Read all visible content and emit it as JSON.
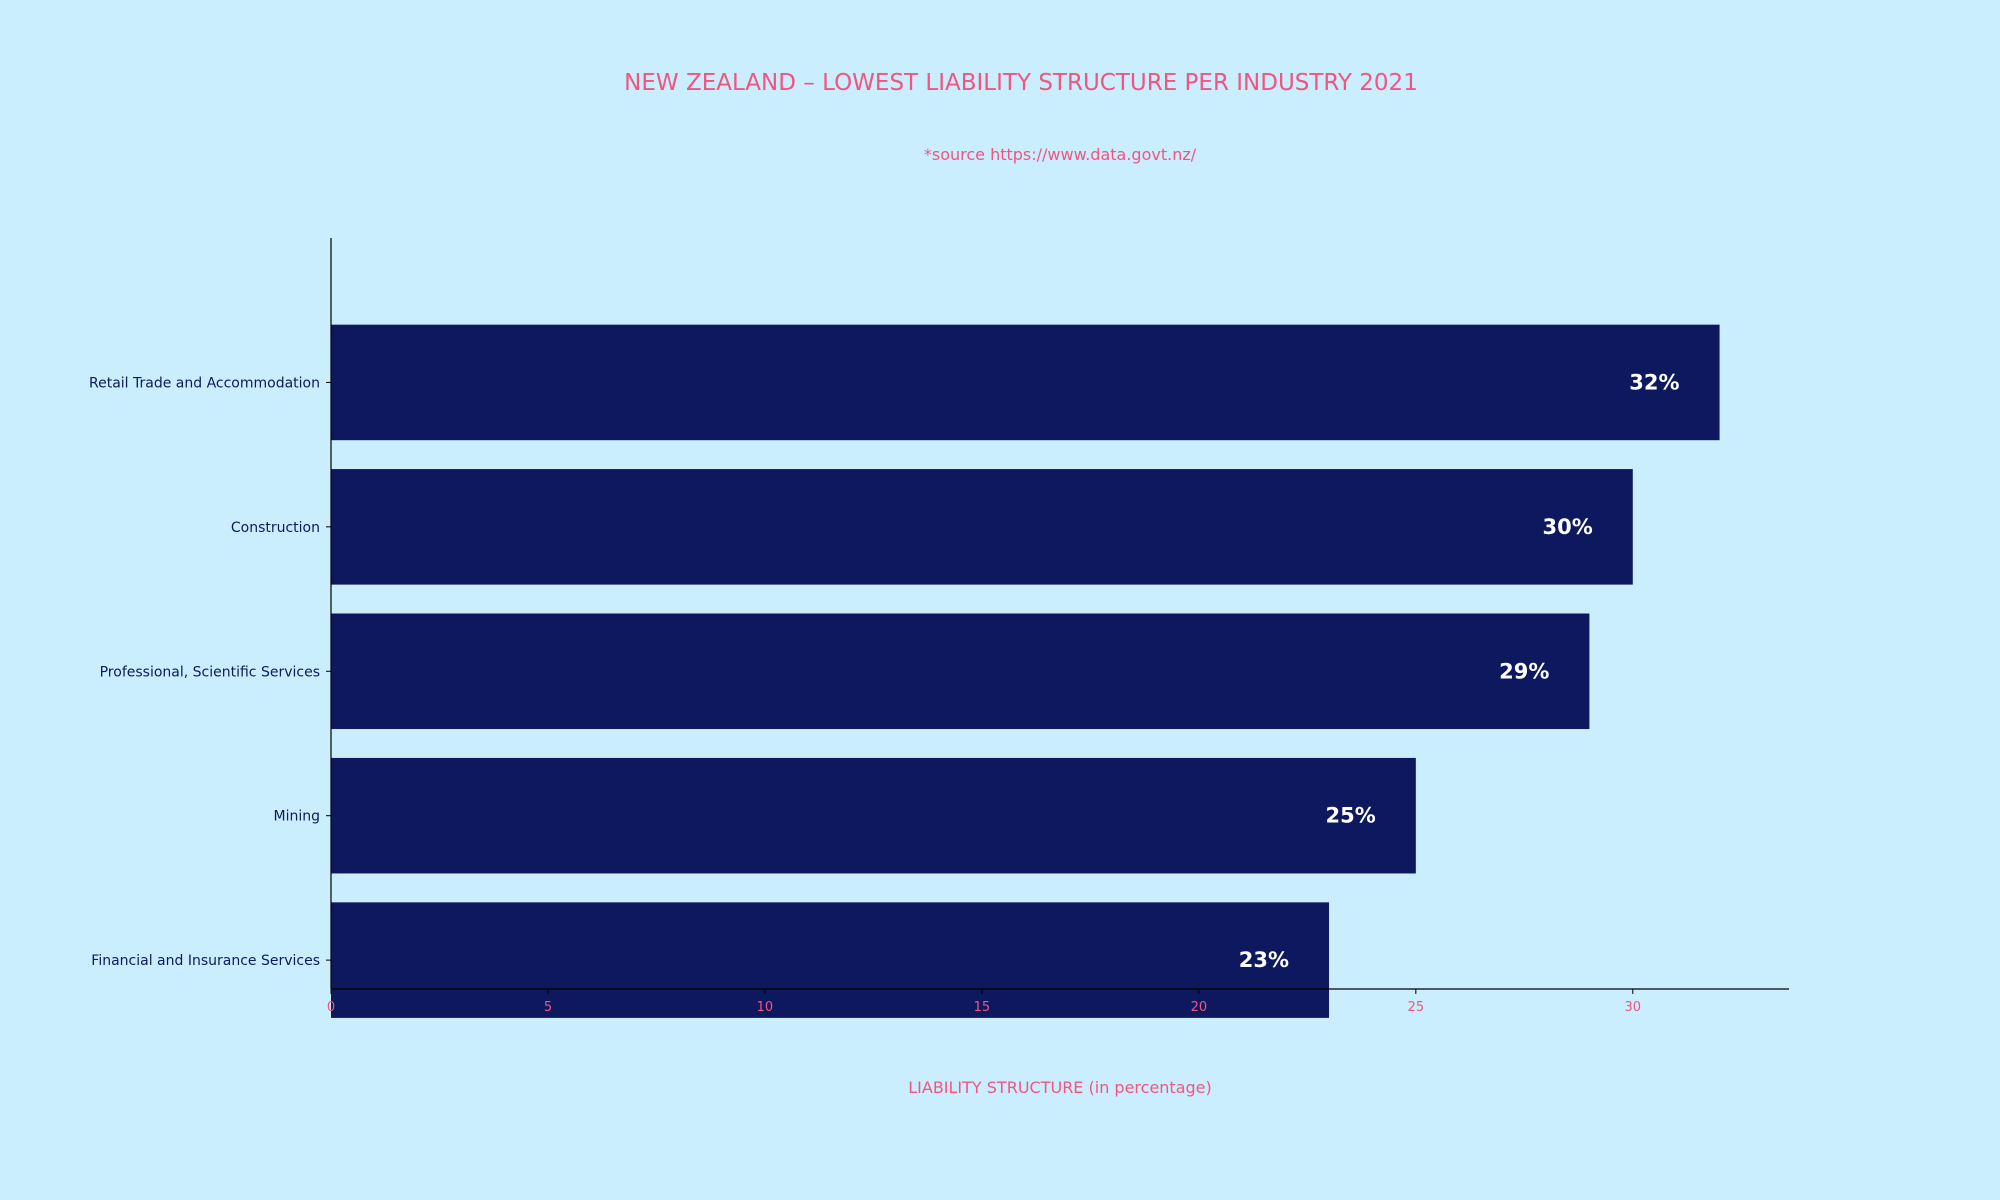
{
  "chart_data": {
    "type": "bar",
    "orientation": "horizontal",
    "title": "NEW ZEALAND – LOWEST LIABILITY STRUCTURE PER INDUSTRY 2021",
    "subtitle": "*source https://www.data.govt.nz/",
    "xlabel": "LIABILITY STRUCTURE (in percentage)",
    "ylabel": "",
    "categories": [
      "Retail Trade and Accommodation",
      "Construction",
      "Professional, Scientific Services",
      "Mining",
      "Financial and Insurance Services"
    ],
    "values": [
      32,
      30,
      29,
      25,
      23
    ],
    "value_labels": [
      "32%",
      "30%",
      "29%",
      "25%",
      "23%"
    ],
    "xlim": [
      0,
      33.6
    ],
    "xticks": [
      0,
      5,
      10,
      15,
      20,
      25,
      30
    ],
    "grid": false,
    "legend": "none"
  },
  "colors": {
    "background": "#caeefe",
    "bar": "#0e185f",
    "accent": "#f2557e",
    "category_text": "#0e185f",
    "value_label": "#ffffff",
    "axis": "#000000"
  }
}
